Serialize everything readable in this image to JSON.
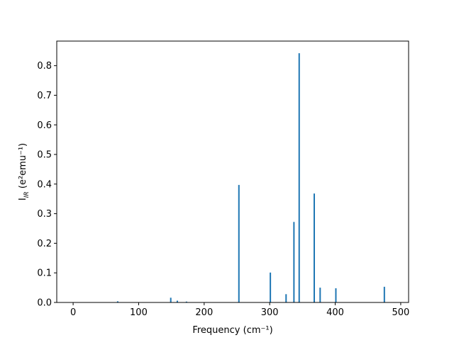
{
  "chart_data": {
    "type": "bar",
    "title": "",
    "xlabel": "Frequency (cm⁻¹)",
    "ylabel": "I_IR (e²emu⁻¹)",
    "xlim": [
      -25,
      512
    ],
    "ylim": [
      0,
      0.883
    ],
    "xticks": [
      0,
      100,
      200,
      300,
      400,
      500
    ],
    "yticks": [
      0.0,
      0.1,
      0.2,
      0.3,
      0.4,
      0.5,
      0.6,
      0.7,
      0.8
    ],
    "bar_color": "#1f77b4",
    "grid": false,
    "legend": "none",
    "x": [
      68,
      108,
      149,
      159,
      173,
      253,
      301,
      325,
      337,
      345,
      368,
      377,
      401,
      475
    ],
    "values": [
      0.004,
      0.001,
      0.016,
      0.006,
      0.003,
      0.397,
      0.101,
      0.028,
      0.272,
      0.842,
      0.368,
      0.05,
      0.048,
      0.053
    ]
  }
}
